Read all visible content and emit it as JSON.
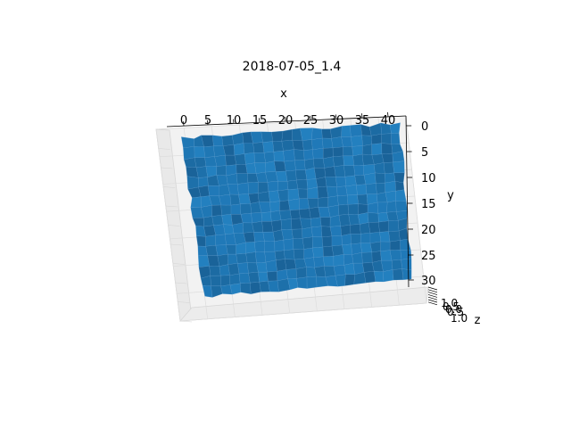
{
  "chart_data": {
    "type": "surface3d",
    "title": "2018-07-05_1.4",
    "xlabel": "x",
    "ylabel": "y",
    "zlabel": "z",
    "x_ticks": [
      "0",
      "5",
      "10",
      "15",
      "20",
      "25",
      "30",
      "35",
      "40"
    ],
    "y_ticks": [
      "0",
      "5",
      "10",
      "15",
      "20",
      "25",
      "30"
    ],
    "z_ticks": [
      "1.0",
      "0.5",
      "0.0",
      "0.5",
      "1.0"
    ],
    "xlim": [
      0,
      43
    ],
    "ylim": [
      0,
      31
    ],
    "grid": true,
    "surface_color": "#1f77b4",
    "surface_values": "z ≈ 0 across the whole grid"
  }
}
